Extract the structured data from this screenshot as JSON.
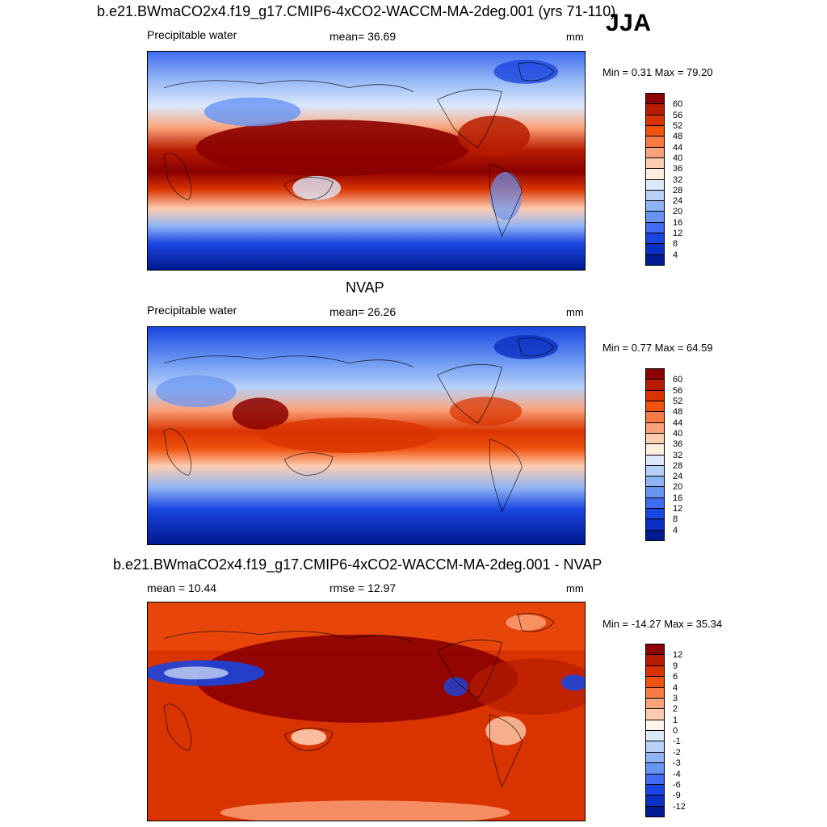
{
  "header": {
    "case_title": "b.e21.BWmaCO2x4.f19_g17.CMIP6-4xCO2-WACCM-MA-2deg.001 (yrs 71-110)",
    "season": "JJA",
    "obs_title": "NVAP",
    "diff_title": "b.e21.BWmaCO2x4.f19_g17.CMIP6-4xCO2-WACCM-MA-2deg.001 - NVAP"
  },
  "panels": [
    {
      "left_label": "Precipitable water",
      "center_label": "mean=  36.69",
      "units": "mm",
      "minmax": "Min =   0.31 Max =  79.20",
      "colorbar_labels": [
        "60",
        "56",
        "52",
        "48",
        "44",
        "40",
        "36",
        "32",
        "28",
        "24",
        "20",
        "16",
        "12",
        "8",
        "4"
      ],
      "colors": [
        "#8b0000",
        "#b71c00",
        "#d93300",
        "#f0520f",
        "#f87a45",
        "#fba27a",
        "#fdcdb0",
        "#feeedd",
        "#dce9fb",
        "#b8d1f8",
        "#8fb3f5",
        "#6894f2",
        "#3f6cf0",
        "#1a45e0",
        "#0a2fc2",
        "#001a90"
      ]
    },
    {
      "left_label": "Precipitable water",
      "center_label": "mean=  26.26",
      "units": "mm",
      "minmax": "Min =   0.77 Max =  64.59",
      "colorbar_labels": [
        "60",
        "56",
        "52",
        "48",
        "44",
        "40",
        "36",
        "32",
        "28",
        "24",
        "20",
        "16",
        "12",
        "8",
        "4"
      ],
      "colors": [
        "#8b0000",
        "#b71c00",
        "#d93300",
        "#f0520f",
        "#f87a45",
        "#fba27a",
        "#fdcdb0",
        "#feeedd",
        "#dce9fb",
        "#b8d1f8",
        "#8fb3f5",
        "#6894f2",
        "#3f6cf0",
        "#1a45e0",
        "#0a2fc2",
        "#001a90"
      ]
    },
    {
      "left_label": "mean =  10.44",
      "center_label": "rmse =  12.97",
      "units": "mm",
      "minmax": "Min = -14.27 Max =  35.34",
      "colorbar_labels": [
        "12",
        "9",
        "6",
        "4",
        "3",
        "2",
        "1",
        "0",
        "-1",
        "-2",
        "-3",
        "-4",
        "-6",
        "-9",
        "-12"
      ],
      "colors": [
        "#8b0000",
        "#b71c00",
        "#d93300",
        "#f0520f",
        "#f87a45",
        "#fba27a",
        "#fdcdb0",
        "#fff3ea",
        "#dce9fb",
        "#b8d1f8",
        "#8fb3f5",
        "#6894f2",
        "#3f6cf0",
        "#1a45e0",
        "#0a2fc2",
        "#001a90"
      ]
    }
  ]
}
